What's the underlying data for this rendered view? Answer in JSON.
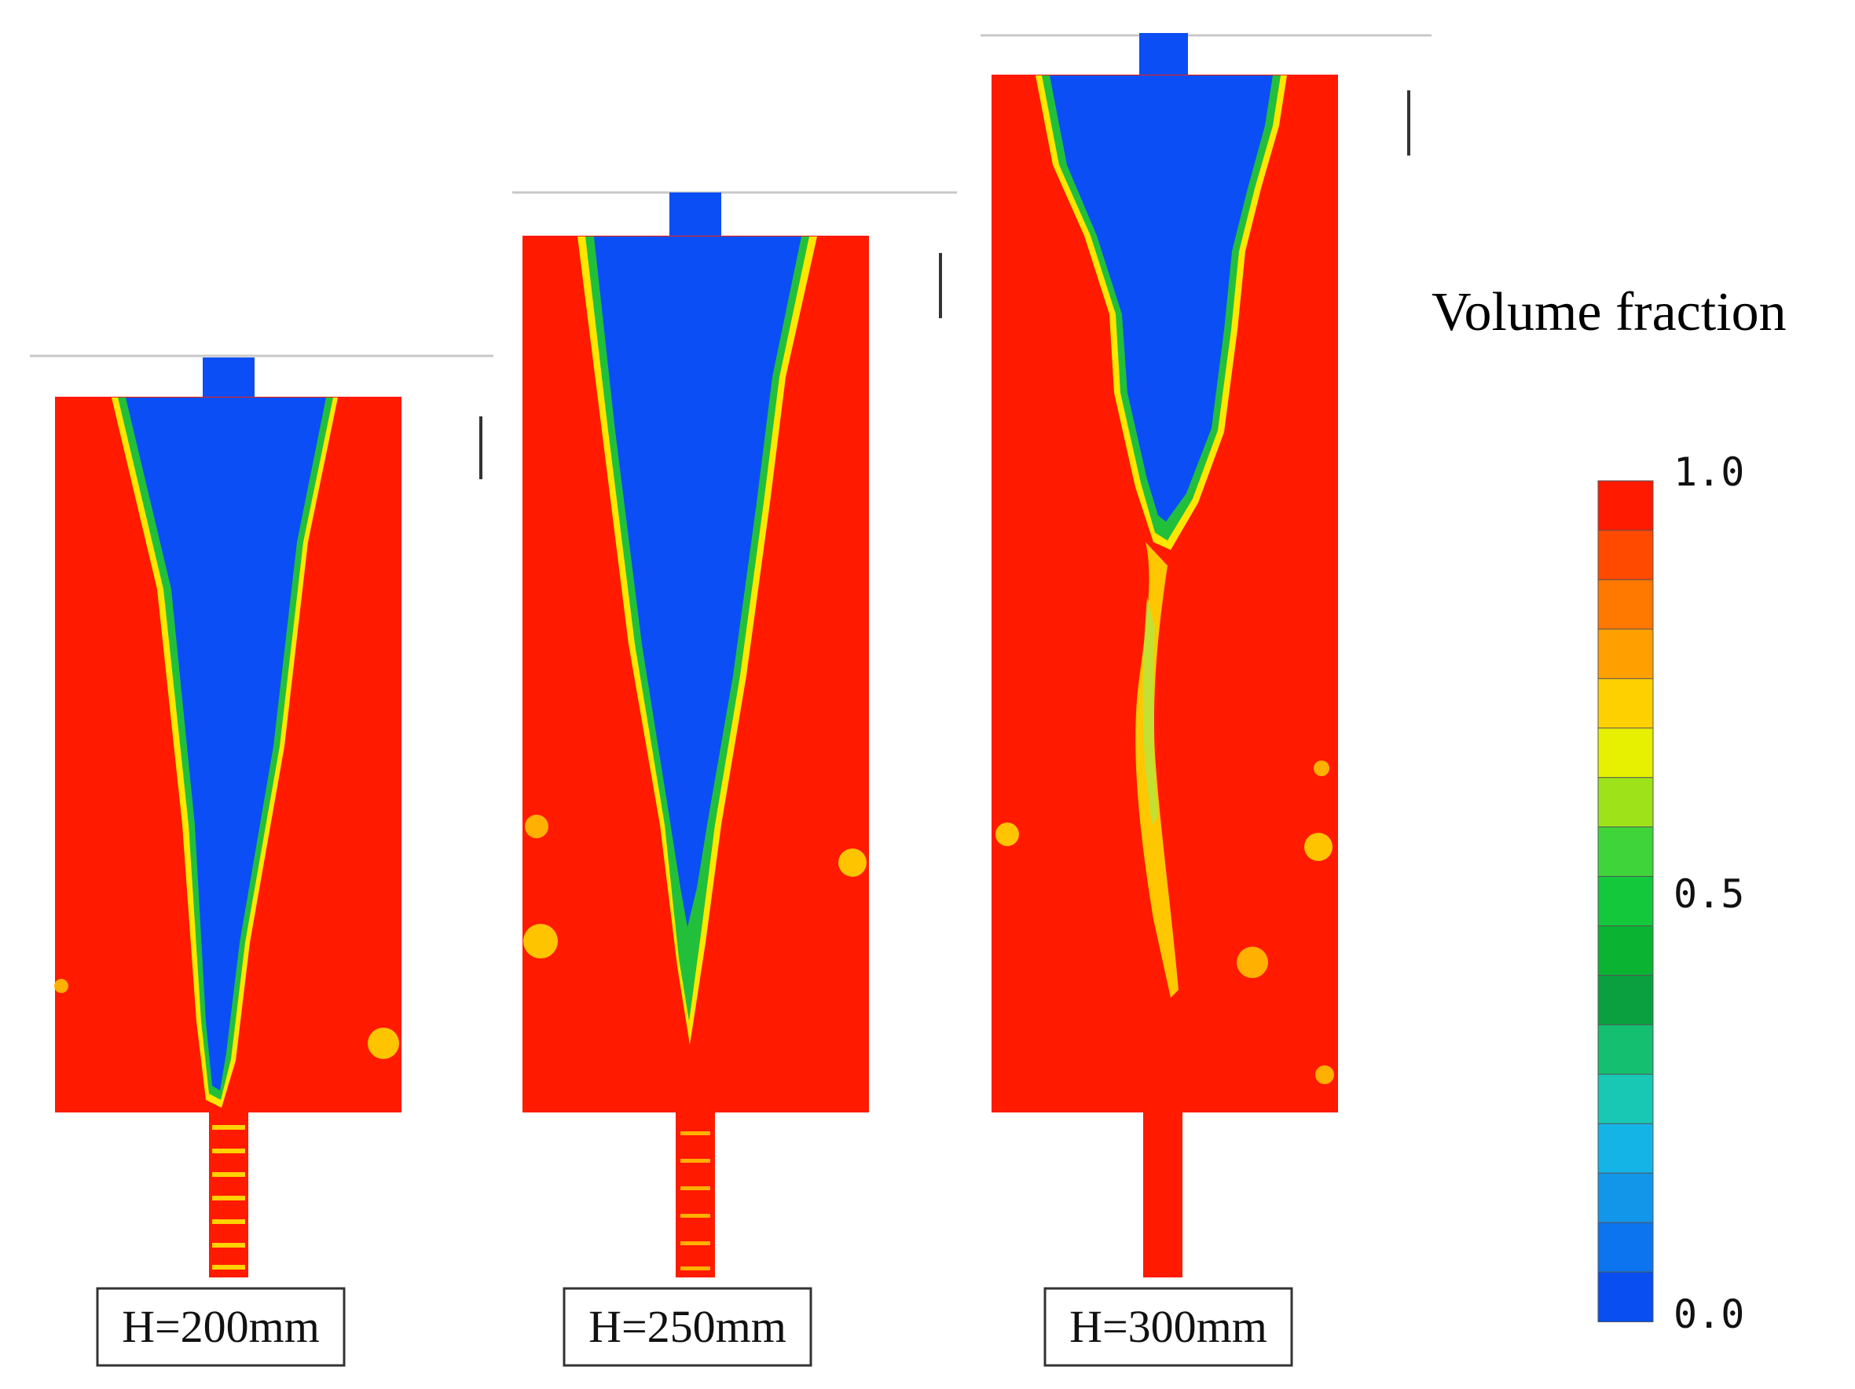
{
  "panels": [
    {
      "label": "H=200mm"
    },
    {
      "label": "H=250mm"
    },
    {
      "label": "H=300mm"
    }
  ],
  "legend": {
    "title": "Volume fraction",
    "ticks": [
      "1.0",
      "0.5",
      "0.0"
    ],
    "colors": [
      "#ff1a00",
      "#ff4a00",
      "#ff7800",
      "#ffa000",
      "#ffd000",
      "#e6f000",
      "#9ee21a",
      "#3fd43a",
      "#14c83c",
      "#0ab432",
      "#0aa040",
      "#14c070",
      "#18c8b4",
      "#14b4e6",
      "#1296ea",
      "#0c74ee",
      "#084ef0"
    ]
  },
  "colors": {
    "steel": "#ff1a00",
    "slag": "#0c4ef5",
    "interface_yellow": "#ffe600",
    "interface_green": "#22c03a"
  }
}
